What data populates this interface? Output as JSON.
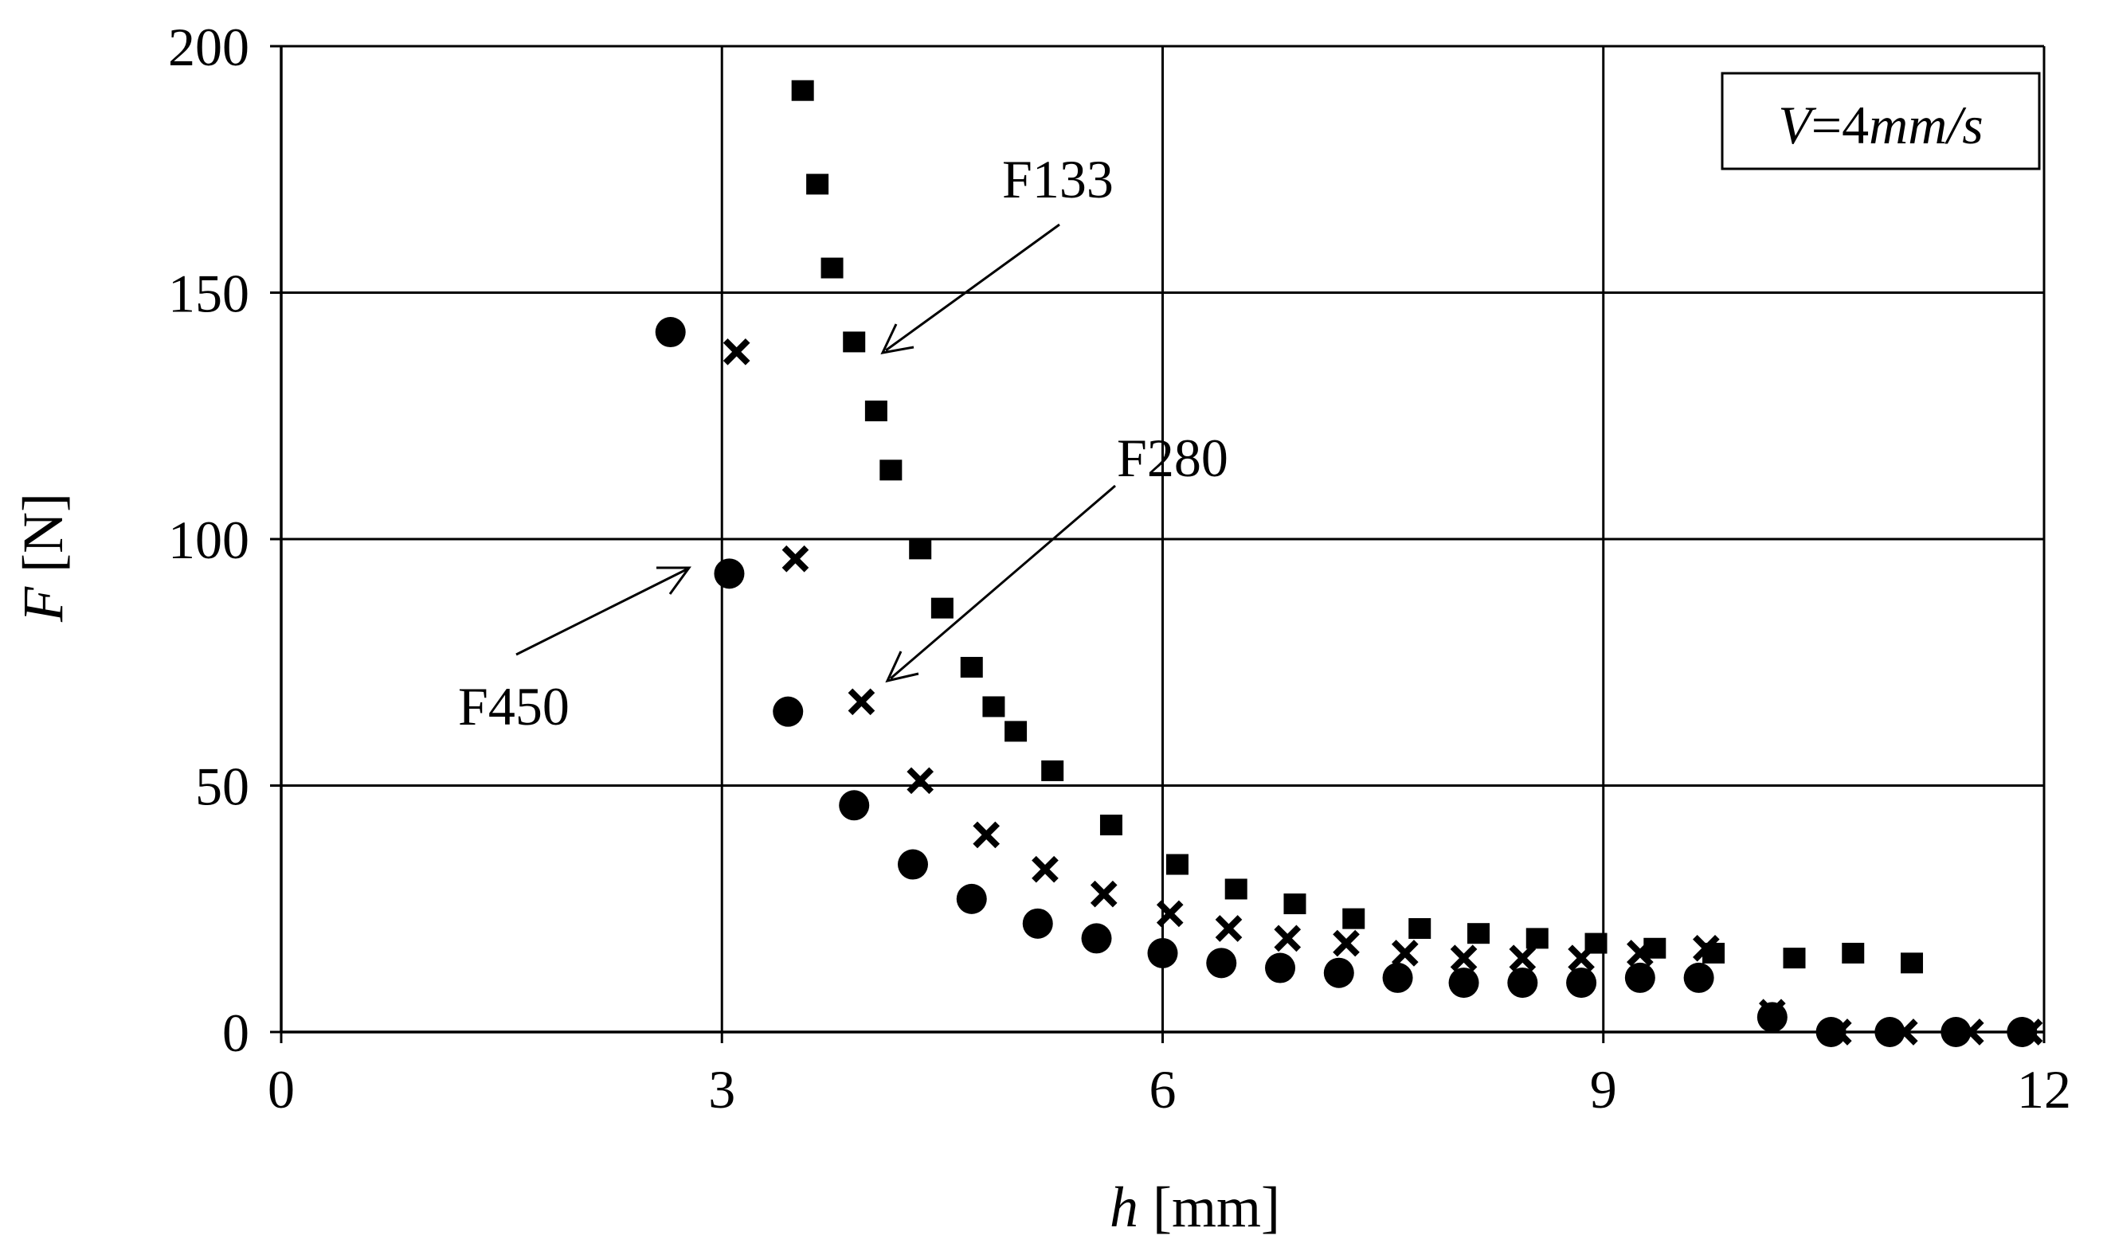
{
  "chart_data": {
    "type": "scatter",
    "xlabel": {
      "var": "h",
      "unit": " [mm]"
    },
    "ylabel": {
      "var": "F",
      "unit": " [N]"
    },
    "xlim": [
      0,
      12
    ],
    "ylim": [
      0,
      200
    ],
    "x_ticks": [
      "0",
      "3",
      "6",
      "9",
      "12"
    ],
    "y_ticks": [
      "0",
      "50",
      "100",
      "150",
      "200"
    ],
    "grid": true,
    "legend": null,
    "annotation_box": {
      "var": "V",
      "rest": "=4",
      "unit": "mm/s",
      "placement": "top-right"
    },
    "series": [
      {
        "name": "F133",
        "marker": "square",
        "x": [
          3.55,
          3.65,
          3.75,
          3.9,
          4.05,
          4.15,
          4.35,
          4.5,
          4.7,
          4.85,
          5.0,
          5.25,
          5.65,
          6.1,
          6.5,
          6.9,
          7.3,
          7.75,
          8.15,
          8.55,
          8.95,
          9.35,
          9.75,
          10.3,
          10.7,
          11.1
        ],
        "y": [
          191,
          172,
          155,
          140,
          126,
          114,
          98,
          86,
          74,
          66,
          61,
          53,
          42,
          34,
          29,
          26,
          23,
          21,
          20,
          19,
          18,
          17,
          16,
          15,
          16,
          14
        ]
      },
      {
        "name": "F280",
        "marker": "x",
        "x": [
          3.1,
          3.5,
          3.95,
          4.35,
          4.8,
          5.2,
          5.6,
          6.05,
          6.45,
          6.85,
          7.25,
          7.65,
          8.05,
          8.45,
          8.85,
          9.25,
          9.7,
          10.15,
          10.6,
          11.05,
          11.5,
          11.9
        ],
        "y": [
          138,
          96,
          67,
          51,
          40,
          33,
          28,
          24,
          21,
          19,
          18,
          16,
          15,
          15,
          15,
          16,
          17,
          4,
          0,
          0,
          0,
          0
        ]
      },
      {
        "name": "F450",
        "marker": "circle",
        "x": [
          2.65,
          3.05,
          3.45,
          3.9,
          4.3,
          4.7,
          5.15,
          5.55,
          6.0,
          6.4,
          6.8,
          7.2,
          7.6,
          8.05,
          8.45,
          8.85,
          9.25,
          9.65,
          10.15,
          10.55,
          10.95,
          11.4,
          11.85
        ],
        "y": [
          142,
          93,
          65,
          46,
          34,
          27,
          22,
          19,
          16,
          14,
          13,
          12,
          11,
          10,
          10,
          10,
          11,
          11,
          3,
          0,
          0,
          0,
          0
        ]
      }
    ]
  }
}
